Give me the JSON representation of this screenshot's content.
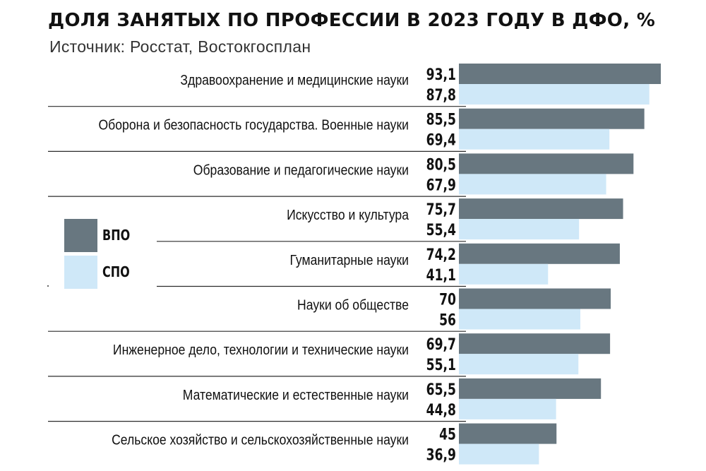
{
  "header": {
    "title": "ДОЛЯ ЗАНЯТЫХ ПО ПРОФЕССИИ В 2023 ГОДУ В ДФО, %",
    "source": "Источник: Росстат, Востокгосплан"
  },
  "legend": [
    {
      "label": "ВПО",
      "color": "#687780"
    },
    {
      "label": "СПО",
      "color": "#cfe8f8"
    }
  ],
  "chart_data": {
    "type": "bar",
    "orientation": "horizontal",
    "categories": [
      "Здравоохранение и медицинские науки",
      "Оборона и безопасность государства. Военные науки",
      "Образование и педагогические науки",
      "Искусство и культура",
      "Гуманитарные науки",
      "Науки об обществе",
      "Инженерное дело, технологии и технические науки",
      "Математические и естественные науки",
      "Сельское хозяйство и сельскохозяйственные науки"
    ],
    "series": [
      {
        "name": "ВПО",
        "values": [
          93.1,
          85.5,
          80.5,
          75.7,
          74.2,
          70,
          69.7,
          65.5,
          45
        ],
        "labels": [
          "93,1",
          "85,5",
          "80,5",
          "75,7",
          "74,2",
          "70",
          "69,7",
          "65,5",
          "45"
        ]
      },
      {
        "name": "СПО",
        "values": [
          87.8,
          69.4,
          67.9,
          55.4,
          41.1,
          56,
          55.1,
          44.8,
          36.9
        ],
        "labels": [
          "87,8",
          "69,4",
          "67,9",
          "55,4",
          "41,1",
          "56",
          "55,1",
          "44,8",
          "36,9"
        ]
      }
    ],
    "xlim": [
      0,
      93.1
    ],
    "axes_visible": false,
    "grid": false,
    "legend_position": "left"
  }
}
